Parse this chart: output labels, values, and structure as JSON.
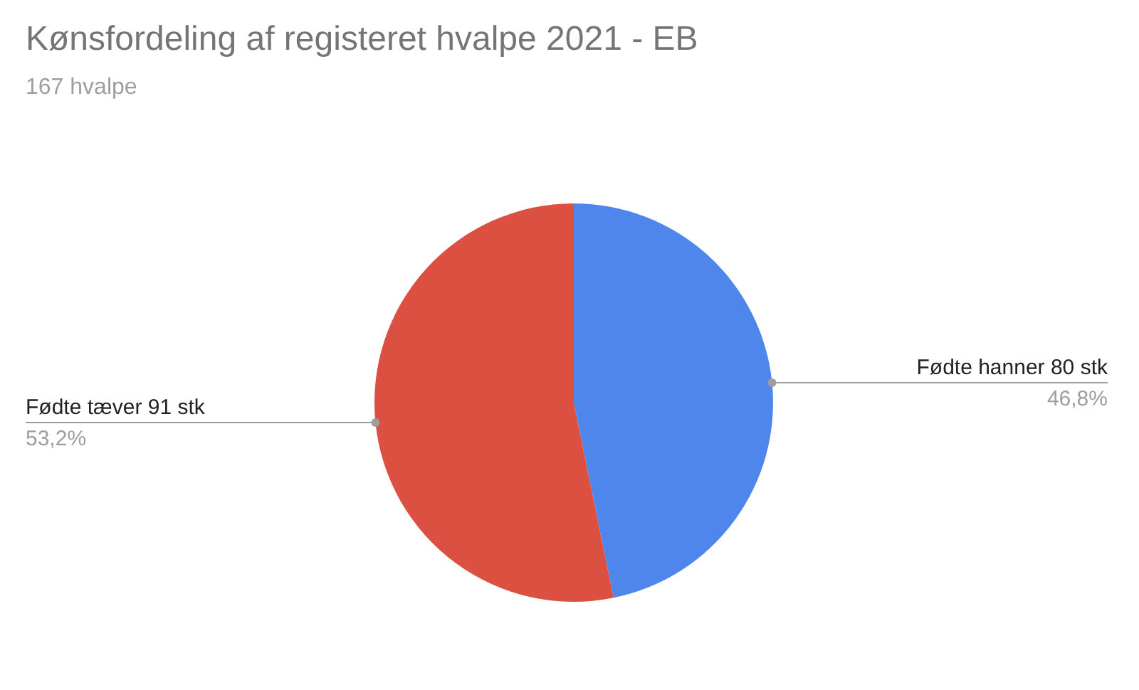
{
  "chart_data": {
    "type": "pie",
    "title": "Kønsfordeling af registeret hvalpe 2021 - EB",
    "subtitle": "167 hvalpe",
    "categories": [
      "Fødte hanner 80 stk",
      "Fødte tæver 91 stk"
    ],
    "values": [
      46.8,
      53.2
    ],
    "colors": [
      "#4f86ec",
      "#db5040"
    ],
    "value_labels": [
      "46,8%",
      "53,2%"
    ],
    "legend": false
  }
}
